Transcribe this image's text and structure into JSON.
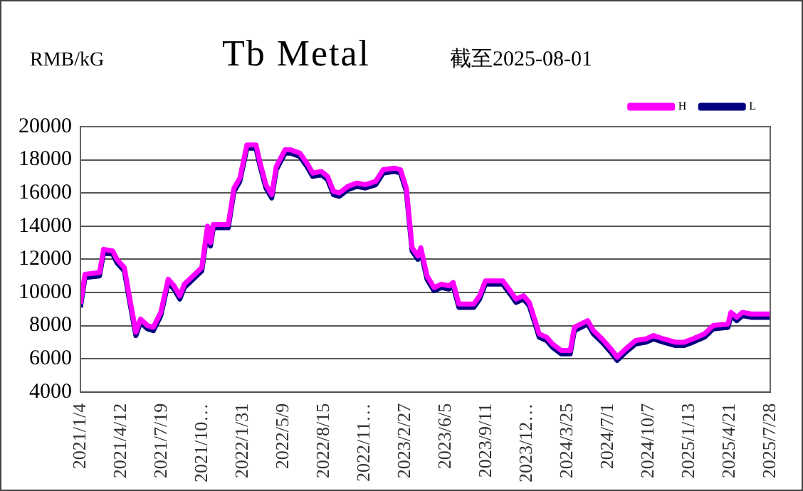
{
  "chart_data": {
    "type": "line",
    "title": "Tb Metal",
    "subtitle": "截至2025-08-01",
    "ylabel": "RMB/kG",
    "x": [
      "2021-01-04",
      "2021-01-15",
      "2021-02-19",
      "2021-03-01",
      "2021-03-23",
      "2021-04-02",
      "2021-04-20",
      "2021-05-04",
      "2021-05-18",
      "2021-05-29",
      "2021-06-15",
      "2021-06-29",
      "2021-07-17",
      "2021-08-04",
      "2021-08-18",
      "2021-09-01",
      "2021-09-12",
      "2021-10-03",
      "2021-10-24",
      "2021-11-07",
      "2021-11-14",
      "2021-11-21",
      "2021-12-27",
      "2022-01-10",
      "2022-01-24",
      "2022-02-10",
      "2022-03-04",
      "2022-03-14",
      "2022-03-28",
      "2022-04-11",
      "2022-04-22",
      "2022-05-13",
      "2022-05-27",
      "2022-06-18",
      "2022-07-05",
      "2022-07-19",
      "2022-08-09",
      "2022-08-24",
      "2022-09-07",
      "2022-09-21",
      "2022-10-12",
      "2022-11-02",
      "2022-11-23",
      "2022-12-18",
      "2023-01-05",
      "2023-02-02",
      "2023-02-16",
      "2023-03-02",
      "2023-03-16",
      "2023-03-30",
      "2023-04-06",
      "2023-04-21",
      "2023-05-08",
      "2023-05-26",
      "2023-06-13",
      "2023-06-23",
      "2023-07-07",
      "2023-08-12",
      "2023-08-26",
      "2023-09-09",
      "2023-10-21",
      "2023-11-08",
      "2023-11-22",
      "2023-12-10",
      "2023-12-24",
      "2024-01-07",
      "2024-01-17",
      "2024-02-04",
      "2024-02-18",
      "2024-03-10",
      "2024-04-01",
      "2024-04-11",
      "2024-05-13",
      "2024-05-27",
      "2024-06-17",
      "2024-07-08",
      "2024-07-23",
      "2024-08-13",
      "2024-09-06",
      "2024-10-01",
      "2024-10-19",
      "2024-11-12",
      "2024-12-11",
      "2025-01-01",
      "2025-01-22",
      "2025-02-19",
      "2025-03-12",
      "2025-04-17",
      "2025-04-24",
      "2025-05-08",
      "2025-05-22",
      "2025-06-12",
      "2025-07-28"
    ],
    "series": [
      {
        "name": "L",
        "color": "#000080",
        "values": [
          9100,
          10900,
          11000,
          12400,
          12300,
          11800,
          11300,
          9300,
          7400,
          8200,
          7800,
          7700,
          8600,
          10600,
          10200,
          9600,
          10300,
          10800,
          11300,
          13800,
          12800,
          13900,
          13900,
          16100,
          16700,
          18700,
          18700,
          17600,
          16300,
          15700,
          17400,
          18400,
          18400,
          18200,
          17600,
          17000,
          17100,
          16800,
          15900,
          15800,
          16200,
          16400,
          16300,
          16500,
          17200,
          17300,
          17200,
          16100,
          12500,
          12000,
          12500,
          10800,
          10100,
          10300,
          10200,
          10400,
          9100,
          9100,
          9600,
          10500,
          10500,
          9900,
          9400,
          9600,
          9200,
          8100,
          7300,
          7100,
          6700,
          6300,
          6300,
          7700,
          8100,
          7500,
          7000,
          6400,
          5900,
          6400,
          6900,
          7000,
          7200,
          7000,
          6800,
          6800,
          7000,
          7300,
          7800,
          7900,
          8600,
          8300,
          8600,
          8500,
          8500
        ]
      },
      {
        "name": "H",
        "color": "#ff00ff",
        "values": [
          9300,
          11100,
          11200,
          12600,
          12500,
          12000,
          11500,
          9500,
          7600,
          8400,
          8000,
          7900,
          8800,
          10800,
          10400,
          9800,
          10500,
          11000,
          11500,
          14000,
          13000,
          14100,
          14100,
          16300,
          16900,
          18900,
          18900,
          17800,
          16500,
          15900,
          17600,
          18600,
          18600,
          18400,
          17800,
          17200,
          17300,
          17000,
          16100,
          16000,
          16400,
          16600,
          16500,
          16700,
          17400,
          17500,
          17400,
          16300,
          12700,
          12200,
          12700,
          11000,
          10300,
          10500,
          10400,
          10600,
          9300,
          9300,
          9800,
          10700,
          10700,
          10100,
          9600,
          9800,
          9400,
          8300,
          7500,
          7300,
          6900,
          6500,
          6500,
          7900,
          8300,
          7700,
          7200,
          6600,
          6100,
          6600,
          7100,
          7200,
          7400,
          7200,
          7000,
          7000,
          7200,
          7500,
          8000,
          8100,
          8800,
          8500,
          8800,
          8700,
          8700
        ]
      }
    ],
    "xlim": [
      "2021-01-04",
      "2025-07-28"
    ],
    "xticks": [
      {
        "value": "2021-01-04",
        "label": "2021/1/4"
      },
      {
        "value": "2021-04-12",
        "label": "2021/4/12"
      },
      {
        "value": "2021-07-19",
        "label": "2021/7/19"
      },
      {
        "value": "2021-10-25",
        "label": "2021/10…"
      },
      {
        "value": "2022-01-31",
        "label": "2022/1/31"
      },
      {
        "value": "2022-05-09",
        "label": "2022/5/9"
      },
      {
        "value": "2022-08-15",
        "label": "2022/8/15"
      },
      {
        "value": "2022-11-21",
        "label": "2022/11…"
      },
      {
        "value": "2023-02-27",
        "label": "2023/2/27"
      },
      {
        "value": "2023-06-05",
        "label": "2023/6/5"
      },
      {
        "value": "2023-09-11",
        "label": "2023/9/11"
      },
      {
        "value": "2023-12-18",
        "label": "2023/12…"
      },
      {
        "value": "2024-03-25",
        "label": "2024/3/25"
      },
      {
        "value": "2024-07-01",
        "label": "2024/7/1"
      },
      {
        "value": "2024-10-07",
        "label": "2024/10/7"
      },
      {
        "value": "2025-01-13",
        "label": "2025/1/13"
      },
      {
        "value": "2025-04-21",
        "label": "2025/4/21"
      },
      {
        "value": "2025-07-28",
        "label": "2025/7/28"
      }
    ],
    "ylim": [
      4000,
      20000
    ],
    "yticks": [
      4000,
      6000,
      8000,
      10000,
      12000,
      14000,
      16000,
      18000,
      20000
    ],
    "grid": "y",
    "legend": "top right",
    "marker": "none",
    "line_style": "solid"
  }
}
